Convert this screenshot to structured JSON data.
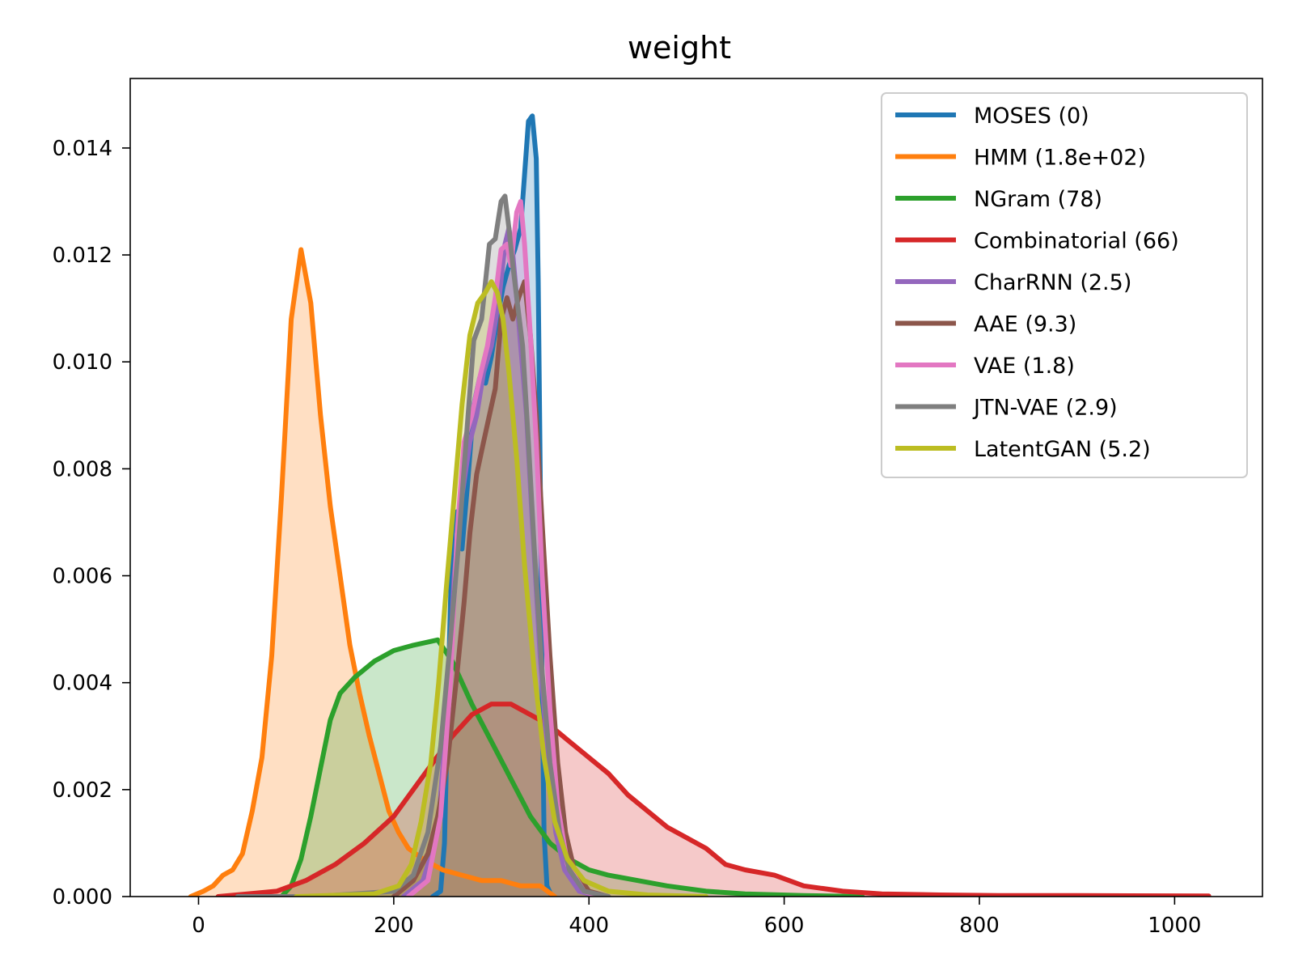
{
  "chart_data": {
    "type": "area",
    "title": "weight",
    "xlabel": "",
    "ylabel": "",
    "xlim": [
      -70,
      1090
    ],
    "ylim": [
      0,
      0.0153
    ],
    "x_ticks": [
      0,
      200,
      400,
      600,
      800,
      1000
    ],
    "x_tick_labels": [
      "0",
      "200",
      "400",
      "600",
      "800",
      "1000"
    ],
    "y_ticks": [
      0,
      0.002,
      0.004,
      0.006,
      0.008,
      0.01,
      0.012,
      0.014
    ],
    "y_tick_labels": [
      "0.000",
      "0.002",
      "0.004",
      "0.006",
      "0.008",
      "0.010",
      "0.012",
      "0.014"
    ],
    "grid": false,
    "legend_position": "top-right",
    "series": [
      {
        "name": "MOSES (0)",
        "color": "#1f77b4",
        "points": [
          [
            240,
            0
          ],
          [
            248,
            0.0001
          ],
          [
            252,
            0.001
          ],
          [
            256,
            0.004
          ],
          [
            260,
            0.0068
          ],
          [
            265,
            0.0072
          ],
          [
            270,
            0.0065
          ],
          [
            276,
            0.0078
          ],
          [
            282,
            0.0092
          ],
          [
            288,
            0.0097
          ],
          [
            294,
            0.0096
          ],
          [
            300,
            0.0101
          ],
          [
            306,
            0.0108
          ],
          [
            312,
            0.0114
          ],
          [
            318,
            0.0118
          ],
          [
            324,
            0.0121
          ],
          [
            330,
            0.0125
          ],
          [
            334,
            0.0135
          ],
          [
            338,
            0.0145
          ],
          [
            342,
            0.0146
          ],
          [
            346,
            0.0138
          ],
          [
            348,
            0.0115
          ],
          [
            350,
            0.008
          ],
          [
            352,
            0.004
          ],
          [
            354,
            0.0012
          ],
          [
            357,
            0.0002
          ],
          [
            362,
            0
          ]
        ]
      },
      {
        "name": "HMM (1.8e+02)",
        "color": "#ff7f0e",
        "points": [
          [
            -8,
            0
          ],
          [
            5,
            0.0001
          ],
          [
            15,
            0.0002
          ],
          [
            25,
            0.0004
          ],
          [
            35,
            0.0005
          ],
          [
            45,
            0.0008
          ],
          [
            55,
            0.0016
          ],
          [
            65,
            0.0026
          ],
          [
            75,
            0.0045
          ],
          [
            85,
            0.0075
          ],
          [
            95,
            0.0108
          ],
          [
            105,
            0.0121
          ],
          [
            115,
            0.0111
          ],
          [
            125,
            0.009
          ],
          [
            135,
            0.0073
          ],
          [
            145,
            0.006
          ],
          [
            155,
            0.0047
          ],
          [
            165,
            0.0038
          ],
          [
            175,
            0.003
          ],
          [
            185,
            0.0023
          ],
          [
            195,
            0.0016
          ],
          [
            205,
            0.0012
          ],
          [
            215,
            0.0009
          ],
          [
            230,
            0.0007
          ],
          [
            250,
            0.0005
          ],
          [
            270,
            0.0004
          ],
          [
            290,
            0.0003
          ],
          [
            310,
            0.0003
          ],
          [
            330,
            0.0002
          ],
          [
            350,
            0.0002
          ],
          [
            365,
            0
          ]
        ]
      },
      {
        "name": "NGram (78)",
        "color": "#2ca02c",
        "points": [
          [
            85,
            0
          ],
          [
            95,
            0.0002
          ],
          [
            105,
            0.0007
          ],
          [
            115,
            0.0015
          ],
          [
            125,
            0.0024
          ],
          [
            135,
            0.0033
          ],
          [
            145,
            0.0038
          ],
          [
            160,
            0.0041
          ],
          [
            180,
            0.0044
          ],
          [
            200,
            0.0046
          ],
          [
            220,
            0.0047
          ],
          [
            245,
            0.0048
          ],
          [
            260,
            0.0044
          ],
          [
            280,
            0.0036
          ],
          [
            300,
            0.0029
          ],
          [
            320,
            0.0022
          ],
          [
            340,
            0.0015
          ],
          [
            360,
            0.001
          ],
          [
            380,
            0.0007
          ],
          [
            400,
            0.0005
          ],
          [
            420,
            0.0004
          ],
          [
            450,
            0.0003
          ],
          [
            480,
            0.0002
          ],
          [
            520,
            0.0001
          ],
          [
            560,
            5e-05
          ],
          [
            620,
            2e-05
          ],
          [
            680,
            0
          ]
        ]
      },
      {
        "name": "Combinatorial (66)",
        "color": "#d62728",
        "points": [
          [
            20,
            0
          ],
          [
            50,
            5e-05
          ],
          [
            80,
            0.0001
          ],
          [
            110,
            0.0003
          ],
          [
            140,
            0.0006
          ],
          [
            170,
            0.001
          ],
          [
            200,
            0.0015
          ],
          [
            220,
            0.002
          ],
          [
            240,
            0.0025
          ],
          [
            260,
            0.003
          ],
          [
            280,
            0.0034
          ],
          [
            300,
            0.0036
          ],
          [
            320,
            0.0036
          ],
          [
            340,
            0.0034
          ],
          [
            360,
            0.0032
          ],
          [
            380,
            0.0029
          ],
          [
            400,
            0.0026
          ],
          [
            420,
            0.0023
          ],
          [
            440,
            0.0019
          ],
          [
            460,
            0.0016
          ],
          [
            480,
            0.0013
          ],
          [
            500,
            0.0011
          ],
          [
            520,
            0.0009
          ],
          [
            540,
            0.0006
          ],
          [
            560,
            0.0005
          ],
          [
            590,
            0.0004
          ],
          [
            620,
            0.0002
          ],
          [
            660,
            0.0001
          ],
          [
            700,
            5e-05
          ],
          [
            760,
            3e-05
          ],
          [
            820,
            2e-05
          ],
          [
            900,
            2e-05
          ],
          [
            1035,
            1e-05
          ]
        ]
      },
      {
        "name": "CharRNN (2.5)",
        "color": "#9467bd",
        "points": [
          [
            210,
            0
          ],
          [
            230,
            0.0003
          ],
          [
            245,
            0.0012
          ],
          [
            255,
            0.0035
          ],
          [
            262,
            0.006
          ],
          [
            270,
            0.0075
          ],
          [
            278,
            0.0085
          ],
          [
            285,
            0.009
          ],
          [
            292,
            0.0098
          ],
          [
            300,
            0.0103
          ],
          [
            308,
            0.0112
          ],
          [
            314,
            0.0122
          ],
          [
            318,
            0.0125
          ],
          [
            322,
            0.012
          ],
          [
            326,
            0.0112
          ],
          [
            330,
            0.0103
          ],
          [
            336,
            0.009
          ],
          [
            342,
            0.007
          ],
          [
            350,
            0.0045
          ],
          [
            358,
            0.0025
          ],
          [
            366,
            0.0012
          ],
          [
            375,
            0.0005
          ],
          [
            390,
            0.0001
          ],
          [
            410,
            0
          ]
        ]
      },
      {
        "name": "AAE (9.3)",
        "color": "#8c564b",
        "points": [
          [
            200,
            0
          ],
          [
            220,
            0.0003
          ],
          [
            235,
            0.0008
          ],
          [
            245,
            0.0015
          ],
          [
            255,
            0.0025
          ],
          [
            265,
            0.0042
          ],
          [
            272,
            0.0055
          ],
          [
            278,
            0.0068
          ],
          [
            285,
            0.0079
          ],
          [
            292,
            0.0085
          ],
          [
            298,
            0.009
          ],
          [
            304,
            0.0095
          ],
          [
            310,
            0.0108
          ],
          [
            316,
            0.0112
          ],
          [
            322,
            0.0108
          ],
          [
            328,
            0.0112
          ],
          [
            334,
            0.0115
          ],
          [
            340,
            0.0105
          ],
          [
            346,
            0.009
          ],
          [
            352,
            0.007
          ],
          [
            360,
            0.0045
          ],
          [
            368,
            0.0025
          ],
          [
            376,
            0.0012
          ],
          [
            385,
            0.0005
          ],
          [
            400,
            0.0001
          ],
          [
            420,
            0
          ]
        ]
      },
      {
        "name": "VAE (1.8)",
        "color": "#e377c2",
        "points": [
          [
            215,
            0
          ],
          [
            235,
            0.0003
          ],
          [
            248,
            0.0015
          ],
          [
            258,
            0.004
          ],
          [
            265,
            0.0068
          ],
          [
            272,
            0.0085
          ],
          [
            280,
            0.009
          ],
          [
            288,
            0.0097
          ],
          [
            296,
            0.0103
          ],
          [
            304,
            0.0112
          ],
          [
            310,
            0.0121
          ],
          [
            316,
            0.0122
          ],
          [
            320,
            0.0118
          ],
          [
            326,
            0.0128
          ],
          [
            330,
            0.013
          ],
          [
            334,
            0.0122
          ],
          [
            340,
            0.0105
          ],
          [
            346,
            0.0085
          ],
          [
            352,
            0.006
          ],
          [
            360,
            0.0035
          ],
          [
            368,
            0.0017
          ],
          [
            378,
            0.0006
          ],
          [
            395,
            0.0001
          ],
          [
            410,
            0
          ]
        ]
      },
      {
        "name": "JTN-VAE (2.9)",
        "color": "#7f7f7f",
        "points": [
          [
            40,
            0
          ],
          [
            120,
            0
          ],
          [
            200,
            0.0001
          ],
          [
            220,
            0.0004
          ],
          [
            235,
            0.0012
          ],
          [
            248,
            0.0028
          ],
          [
            258,
            0.0048
          ],
          [
            266,
            0.0065
          ],
          [
            274,
            0.0085
          ],
          [
            282,
            0.0104
          ],
          [
            290,
            0.0108
          ],
          [
            298,
            0.0122
          ],
          [
            304,
            0.0123
          ],
          [
            310,
            0.013
          ],
          [
            314,
            0.0131
          ],
          [
            318,
            0.0125
          ],
          [
            322,
            0.0118
          ],
          [
            326,
            0.0112
          ],
          [
            332,
            0.0103
          ],
          [
            338,
            0.0085
          ],
          [
            344,
            0.0065
          ],
          [
            352,
            0.0042
          ],
          [
            360,
            0.0025
          ],
          [
            370,
            0.0012
          ],
          [
            380,
            0.0005
          ],
          [
            395,
            0.0001
          ],
          [
            420,
            0
          ]
        ]
      },
      {
        "name": "LatentGAN (5.2)",
        "color": "#bcbd22",
        "points": [
          [
            100,
            0
          ],
          [
            180,
            5e-05
          ],
          [
            205,
            0.0002
          ],
          [
            218,
            0.0006
          ],
          [
            228,
            0.0014
          ],
          [
            238,
            0.0025
          ],
          [
            246,
            0.004
          ],
          [
            254,
            0.0058
          ],
          [
            262,
            0.0075
          ],
          [
            270,
            0.0092
          ],
          [
            278,
            0.0105
          ],
          [
            286,
            0.0111
          ],
          [
            294,
            0.0113
          ],
          [
            300,
            0.0115
          ],
          [
            306,
            0.0113
          ],
          [
            312,
            0.0108
          ],
          [
            318,
            0.0098
          ],
          [
            326,
            0.0082
          ],
          [
            334,
            0.0062
          ],
          [
            344,
            0.0042
          ],
          [
            354,
            0.0026
          ],
          [
            365,
            0.0014
          ],
          [
            378,
            0.0007
          ],
          [
            395,
            0.0003
          ],
          [
            420,
            0.0001
          ],
          [
            460,
            3e-05
          ],
          [
            520,
            0
          ]
        ]
      }
    ]
  }
}
